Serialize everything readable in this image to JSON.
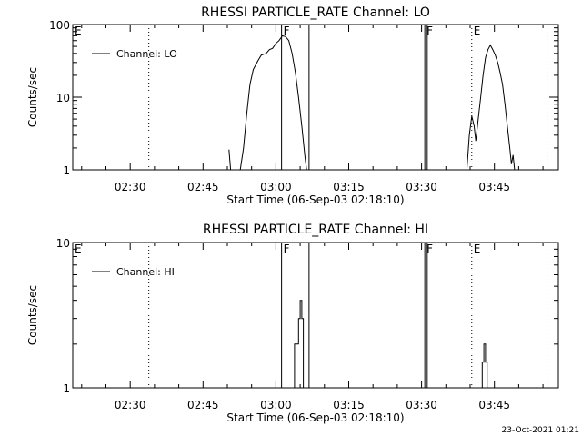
{
  "chart_data": [
    {
      "type": "line",
      "title": "RHESSI PARTICLE_RATE Channel: LO",
      "xlabel": "Start Time (06-Sep-03 02:18:10)",
      "ylabel": "Counts/sec",
      "yscale": "log",
      "ylim": [
        1,
        100
      ],
      "xlim": [
        "02:18:10",
        "03:58:10"
      ],
      "x_ticks": [
        "02:30",
        "02:45",
        "03:00",
        "03:15",
        "03:30",
        "03:45"
      ],
      "y_ticks": [
        "1",
        "10",
        "100"
      ],
      "legend_location": "top-left",
      "series": [
        {
          "name": "Channel: LO",
          "x": [
            "02:50:20",
            "02:50:40",
            "02:52:40",
            "02:53:20",
            "02:54:00",
            "02:54:40",
            "02:55:20",
            "02:56:20",
            "02:57:00",
            "02:58:00",
            "02:58:40",
            "02:59:20",
            "03:00:00",
            "03:00:40",
            "03:01:20",
            "03:02:00",
            "03:02:40",
            "03:03:20",
            "03:04:00",
            "03:04:40",
            "03:05:20",
            "03:06:00",
            "03:06:20"
          ],
          "y": [
            1.9,
            1.0,
            1.0,
            2.0,
            6.0,
            15.0,
            24.0,
            32.0,
            38.0,
            40.0,
            45.0,
            47.0,
            55.0,
            60.0,
            70.0,
            68.0,
            60.0,
            40.0,
            22.0,
            10.0,
            4.0,
            1.5,
            1.0
          ]
        },
        {
          "name": "Channel: LO",
          "x": [
            "03:39:20",
            "03:39:50",
            "03:40:20",
            "03:40:50",
            "03:41:10",
            "03:41:40",
            "03:42:10",
            "03:42:40",
            "03:43:10",
            "03:43:40",
            "03:44:10",
            "03:44:40",
            "03:45:10",
            "03:45:40",
            "03:46:10",
            "03:46:40",
            "03:47:10",
            "03:47:40",
            "03:48:10",
            "03:48:30",
            "03:48:50",
            "03:49:10",
            "03:49:40"
          ],
          "y": [
            1.0,
            3.0,
            5.5,
            4.0,
            2.5,
            5.0,
            10.0,
            20.0,
            35.0,
            45.0,
            52.0,
            45.0,
            38.0,
            30.0,
            22.0,
            15.0,
            8.0,
            4.0,
            2.0,
            1.2,
            1.6,
            1.0,
            1.0
          ]
        }
      ],
      "markers": [
        {
          "label": "E",
          "type": "dotted",
          "x": "02:18:10"
        },
        {
          "label": "",
          "type": "dotted",
          "x": "02:33:50"
        },
        {
          "label": "F",
          "type": "solid",
          "x": "03:01:10"
        },
        {
          "label": "",
          "type": "solid",
          "x": "03:06:50"
        },
        {
          "label": "F",
          "type": "solid",
          "x": "03:30:40"
        },
        {
          "label": "",
          "type": "solid",
          "x": "03:31:10"
        },
        {
          "label": "E",
          "type": "dotted",
          "x": "03:40:20"
        },
        {
          "label": "",
          "type": "dotted",
          "x": "03:55:50"
        }
      ]
    },
    {
      "type": "line",
      "title": "RHESSI PARTICLE_RATE Channel: HI",
      "xlabel": "Start Time (06-Sep-03 02:18:10)",
      "ylabel": "Counts/sec",
      "yscale": "log",
      "ylim": [
        1,
        10
      ],
      "xlim": [
        "02:18:10",
        "03:58:10"
      ],
      "x_ticks": [
        "02:30",
        "02:45",
        "03:00",
        "03:15",
        "03:30",
        "03:45"
      ],
      "y_ticks": [
        "1",
        "10"
      ],
      "legend_location": "top-left",
      "series": [
        {
          "name": "Channel: HI",
          "x": [
            "03:03:30",
            "03:03:50",
            "03:04:20",
            "03:04:40",
            "03:05:00",
            "03:05:20",
            "03:05:40",
            "03:06:00"
          ],
          "y": [
            1.0,
            2.0,
            2.0,
            3.0,
            4.0,
            3.0,
            1.0,
            1.0
          ],
          "step": true
        },
        {
          "name": "Channel: HI",
          "x": [
            "03:42:10",
            "03:42:30",
            "03:42:50",
            "03:43:10",
            "03:43:30"
          ],
          "y": [
            1.0,
            1.5,
            2.0,
            1.5,
            1.0
          ],
          "step": true
        }
      ],
      "markers": [
        {
          "label": "E",
          "type": "dotted",
          "x": "02:18:10"
        },
        {
          "label": "",
          "type": "dotted",
          "x": "02:33:50"
        },
        {
          "label": "F",
          "type": "solid",
          "x": "03:01:10"
        },
        {
          "label": "",
          "type": "solid",
          "x": "03:06:50"
        },
        {
          "label": "F",
          "type": "solid",
          "x": "03:30:40"
        },
        {
          "label": "",
          "type": "solid",
          "x": "03:31:10"
        },
        {
          "label": "E",
          "type": "dotted",
          "x": "03:40:20"
        },
        {
          "label": "",
          "type": "dotted",
          "x": "03:55:50"
        }
      ]
    }
  ],
  "footer": {
    "timestamp": "23-Oct-2021 01:21"
  }
}
